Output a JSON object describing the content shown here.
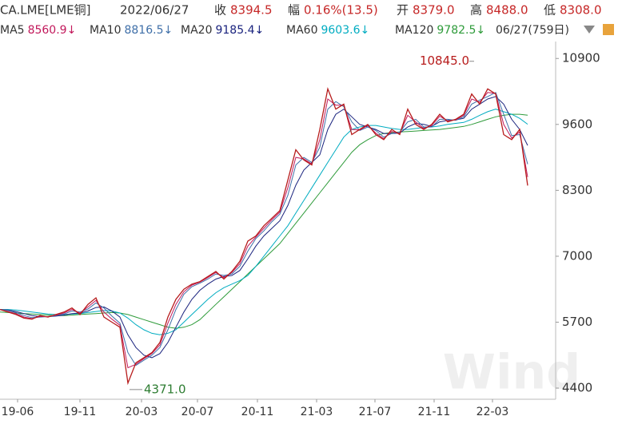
{
  "chart_data": {
    "type": "line",
    "header": [
      "CA.LME[LME铜]",
      "2022/06/27",
      "收",
      "8394.5",
      "幅",
      "0.16%(13.5)",
      "开",
      "8379.0",
      "高",
      "8488.0",
      "低",
      "8308.0"
    ],
    "range_label": "06/27(759日)",
    "watermark": "Wind",
    "color": "#b71c1c",
    "x": [
      0,
      1,
      2,
      3,
      4,
      5,
      6,
      7,
      8,
      9,
      10,
      11,
      12,
      13,
      14,
      15,
      16,
      17,
      18,
      19,
      20,
      21,
      22,
      23,
      24,
      25,
      26,
      27,
      28,
      29,
      30,
      31,
      32,
      33,
      34,
      35,
      36,
      37,
      38,
      39,
      40,
      41,
      42,
      43,
      44,
      45,
      46,
      47,
      48,
      49,
      50,
      51,
      52,
      53,
      54,
      55,
      56,
      57,
      58,
      59,
      60,
      61,
      62,
      63,
      64,
      65,
      66
    ],
    "values": [
      5950,
      5900,
      5850,
      5780,
      5760,
      5830,
      5800,
      5850,
      5900,
      5980,
      5850,
      6050,
      6180,
      5800,
      5700,
      5600,
      4500,
      4900,
      5000,
      5100,
      5300,
      5800,
      6150,
      6350,
      6450,
      6500,
      6600,
      6700,
      6550,
      6700,
      6900,
      7300,
      7400,
      7600,
      7750,
      7900,
      8500,
      9100,
      8900,
      8800,
      9500,
      10300,
      9900,
      10000,
      9400,
      9500,
      9600,
      9400,
      9300,
      9500,
      9400,
      9900,
      9600,
      9500,
      9600,
      9800,
      9650,
      9700,
      9800,
      10200,
      10000,
      10300,
      10200,
      9400,
      9300,
      9500,
      8394.5
    ],
    "series": [
      {
        "name": "MA5",
        "color": "#c2185b",
        "trend": "↓",
        "values": [
          5950,
          5910,
          5870,
          5800,
          5770,
          5810,
          5810,
          5840,
          5880,
          5950,
          5880,
          6000,
          6130,
          5900,
          5760,
          5640,
          4800,
          4870,
          4980,
          5080,
          5250,
          5680,
          6050,
          6300,
          6430,
          6490,
          6580,
          6680,
          6580,
          6680,
          6850,
          7200,
          7380,
          7550,
          7720,
          7870,
          8350,
          8950,
          8920,
          8820,
          9300,
          10100,
          9980,
          9980,
          9500,
          9490,
          9580,
          9430,
          9320,
          9460,
          9420,
          9780,
          9650,
          9520,
          9580,
          9760,
          9670,
          9690,
          9780,
          10100,
          10040,
          10230,
          10210,
          9600,
          9330,
          9450,
          8560.9
        ]
      },
      {
        "name": "MA10",
        "color": "#3f6fa8",
        "trend": "↓",
        "values": [
          5950,
          5930,
          5890,
          5830,
          5790,
          5800,
          5810,
          5830,
          5860,
          5920,
          5900,
          5960,
          6080,
          5980,
          5820,
          5680,
          5100,
          4850,
          4950,
          5050,
          5200,
          5550,
          5950,
          6250,
          6400,
          6470,
          6550,
          6650,
          6620,
          6650,
          6800,
          7100,
          7350,
          7500,
          7680,
          7830,
          8200,
          8800,
          8950,
          8850,
          9150,
          9900,
          10050,
          9950,
          9650,
          9480,
          9550,
          9480,
          9350,
          9420,
          9450,
          9650,
          9700,
          9550,
          9550,
          9700,
          9700,
          9680,
          9750,
          10000,
          10080,
          10150,
          10230,
          9800,
          9380,
          9400,
          8816.5
        ]
      },
      {
        "name": "MA20",
        "color": "#1a237e",
        "trend": "↓",
        "values": [
          5950,
          5940,
          5910,
          5870,
          5830,
          5810,
          5810,
          5820,
          5840,
          5870,
          5880,
          5920,
          5990,
          6000,
          5920,
          5800,
          5450,
          5200,
          5050,
          5000,
          5080,
          5300,
          5600,
          5900,
          6150,
          6330,
          6450,
          6550,
          6600,
          6620,
          6720,
          6950,
          7200,
          7400,
          7550,
          7700,
          8000,
          8400,
          8700,
          8850,
          9000,
          9500,
          9800,
          9900,
          9750,
          9600,
          9550,
          9500,
          9420,
          9420,
          9430,
          9550,
          9620,
          9600,
          9560,
          9650,
          9680,
          9690,
          9720,
          9900,
          10000,
          10100,
          10150,
          10000,
          9700,
          9500,
          9185.4
        ]
      },
      {
        "name": "MA60",
        "color": "#00acc1",
        "trend": "↓",
        "values": [
          5950,
          5950,
          5940,
          5920,
          5900,
          5880,
          5860,
          5850,
          5850,
          5860,
          5870,
          5890,
          5910,
          5930,
          5920,
          5880,
          5780,
          5650,
          5550,
          5480,
          5450,
          5480,
          5550,
          5700,
          5850,
          6000,
          6150,
          6280,
          6380,
          6450,
          6520,
          6620,
          6800,
          7000,
          7200,
          7400,
          7600,
          7850,
          8100,
          8350,
          8600,
          8850,
          9100,
          9350,
          9500,
          9550,
          9580,
          9580,
          9550,
          9520,
          9500,
          9500,
          9520,
          9540,
          9550,
          9570,
          9600,
          9620,
          9640,
          9700,
          9780,
          9850,
          9900,
          9850,
          9800,
          9720,
          9603.6
        ]
      },
      {
        "name": "MA120",
        "color": "#2e9b3a",
        "trend": "↓",
        "values": [
          5900,
          5890,
          5880,
          5870,
          5860,
          5850,
          5840,
          5830,
          5830,
          5840,
          5850,
          5860,
          5870,
          5880,
          5890,
          5880,
          5850,
          5800,
          5750,
          5700,
          5650,
          5600,
          5580,
          5600,
          5650,
          5750,
          5900,
          6050,
          6200,
          6350,
          6500,
          6650,
          6800,
          6950,
          7100,
          7250,
          7450,
          7650,
          7850,
          8050,
          8250,
          8450,
          8650,
          8850,
          9050,
          9200,
          9300,
          9380,
          9420,
          9440,
          9450,
          9460,
          9470,
          9480,
          9490,
          9500,
          9520,
          9540,
          9560,
          9600,
          9650,
          9700,
          9750,
          9780,
          9800,
          9800,
          9782.5
        ]
      }
    ],
    "annotations": [
      {
        "x": 59.3,
        "value": 10845,
        "label": "10845.0",
        "color": "#b71c1c"
      },
      {
        "x": 16.2,
        "value": 4371,
        "label": "4371.0",
        "color": "#2e7d32"
      }
    ],
    "xlim": [
      0,
      69.5
    ],
    "ylim": [
      4180,
      11140
    ],
    "xticks": [
      {
        "value": 2.2,
        "label": "19-06"
      },
      {
        "value": 10,
        "label": "19-11"
      },
      {
        "value": 17.7,
        "label": "20-03"
      },
      {
        "value": 24.7,
        "label": "20-07"
      },
      {
        "value": 32.2,
        "label": "20-11"
      },
      {
        "value": 39.6,
        "label": "21-03"
      },
      {
        "value": 46.9,
        "label": "21-07"
      },
      {
        "value": 54.3,
        "label": "21-11"
      },
      {
        "value": 61.6,
        "label": "22-03"
      }
    ],
    "yticks": [
      4400,
      5700,
      7000,
      8300,
      9600,
      10900
    ]
  }
}
